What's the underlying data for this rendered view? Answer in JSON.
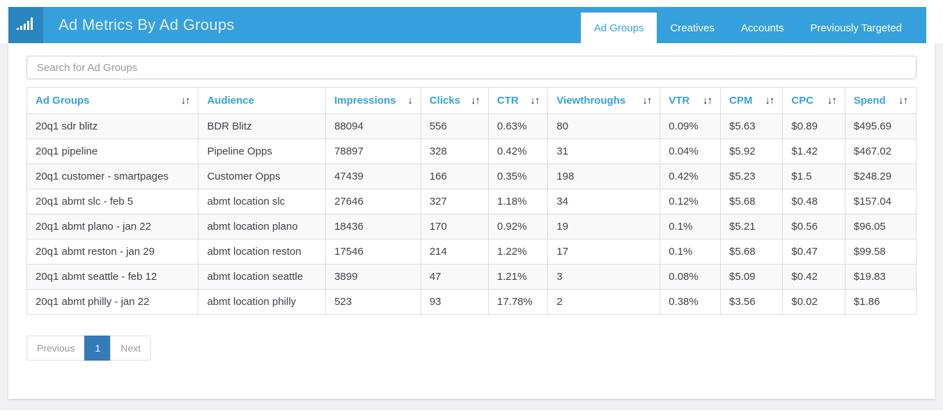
{
  "header": {
    "title": "Ad Metrics By Ad Groups",
    "logo_icon": "bar-chart-icon",
    "tabs": [
      {
        "label": "Ad Groups",
        "active": true
      },
      {
        "label": "Creatives",
        "active": false
      },
      {
        "label": "Accounts",
        "active": false
      },
      {
        "label": "Previously Targeted",
        "active": false
      }
    ]
  },
  "search": {
    "placeholder": "Search for Ad Groups"
  },
  "table": {
    "columns": [
      {
        "label": "Ad Groups",
        "sort": "both"
      },
      {
        "label": "Audience",
        "sort": "none"
      },
      {
        "label": "Impressions",
        "sort": "desc"
      },
      {
        "label": "Clicks",
        "sort": "both"
      },
      {
        "label": "CTR",
        "sort": "both"
      },
      {
        "label": "Viewthroughs",
        "sort": "both"
      },
      {
        "label": "VTR",
        "sort": "both"
      },
      {
        "label": "CPM",
        "sort": "both"
      },
      {
        "label": "CPC",
        "sort": "both"
      },
      {
        "label": "Spend",
        "sort": "both"
      }
    ],
    "rows": [
      [
        "20q1 sdr blitz",
        "BDR Blitz",
        "88094",
        "556",
        "0.63%",
        "80",
        "0.09%",
        "$5.63",
        "$0.89",
        "$495.69"
      ],
      [
        "20q1 pipeline",
        "Pipeline Opps",
        "78897",
        "328",
        "0.42%",
        "31",
        "0.04%",
        "$5.92",
        "$1.42",
        "$467.02"
      ],
      [
        "20q1 customer - smartpages",
        "Customer Opps",
        "47439",
        "166",
        "0.35%",
        "198",
        "0.42%",
        "$5.23",
        "$1.5",
        "$248.29"
      ],
      [
        "20q1 abmt slc - feb 5",
        "abmt location slc",
        "27646",
        "327",
        "1.18%",
        "34",
        "0.12%",
        "$5.68",
        "$0.48",
        "$157.04"
      ],
      [
        "20q1 abmt plano - jan 22",
        "abmt location plano",
        "18436",
        "170",
        "0.92%",
        "19",
        "0.1%",
        "$5.21",
        "$0.56",
        "$96.05"
      ],
      [
        "20q1 abmt reston - jan 29",
        "abmt location reston",
        "17546",
        "214",
        "1.22%",
        "17",
        "0.1%",
        "$5.68",
        "$0.47",
        "$99.58"
      ],
      [
        "20q1 abmt seattle - feb 12",
        "abmt location seattle",
        "3899",
        "47",
        "1.21%",
        "3",
        "0.08%",
        "$5.09",
        "$0.42",
        "$19.83"
      ],
      [
        "20q1 abmt philly - jan 22",
        "abmt location philly",
        "523",
        "93",
        "17.78%",
        "2",
        "0.38%",
        "$3.56",
        "$0.02",
        "$1.86"
      ]
    ]
  },
  "pagination": {
    "previous_label": "Previous",
    "pages": [
      {
        "label": "1",
        "active": true
      }
    ],
    "next_label": "Next"
  },
  "colors": {
    "navbar_blue": "#36a0dc",
    "logo_blue": "#2b85bf",
    "accent_blue": "#31a2df",
    "pagination_active_blue": "#337ab7",
    "row_stripe": "#f9f9f9",
    "table_border": "#dddddd"
  }
}
